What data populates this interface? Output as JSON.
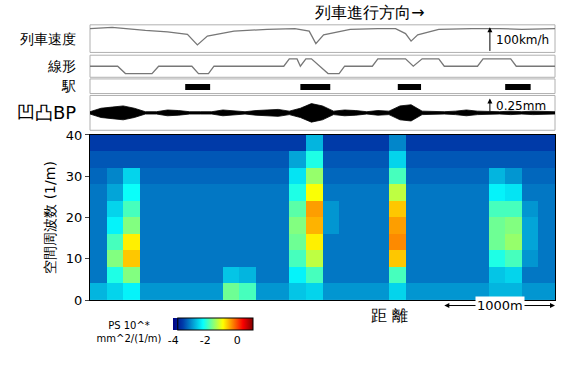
{
  "chart_data": {
    "type": "heatmap",
    "title": "列車進行方向→",
    "x_label": "距 離",
    "y_label": "空間周波数 (1/m)",
    "tick_labels": "y",
    "xlim": [
      0,
      4200
    ],
    "xticks": [],
    "ylim": [
      0,
      40
    ],
    "yticks": [
      0,
      10,
      20,
      30,
      40
    ],
    "x": [
      75,
      225,
      375,
      525,
      675,
      825,
      975,
      1125,
      1275,
      1425,
      1575,
      1725,
      1875,
      2025,
      2175,
      2325,
      2475,
      2625,
      2775,
      2925,
      3075,
      3225,
      3375,
      3525,
      3675,
      3825,
      3975,
      4125
    ],
    "y": [
      2,
      6,
      10,
      14,
      18,
      22,
      26,
      30,
      34,
      38
    ],
    "z": [
      [
        -2.6,
        -2.4,
        -2.2,
        -2.8,
        -2.8,
        -2.8,
        -2.8,
        -2.8,
        -1.6,
        -1.8,
        -2.8,
        -2.8,
        -2.5,
        -2.4,
        -2.8,
        -2.8,
        -2.8,
        -2.8,
        -2.4,
        -2.8,
        -2.8,
        -2.8,
        -2.8,
        -2.8,
        -2.6,
        -2.6,
        -2.8,
        -2.8
      ],
      [
        -3,
        -2.0,
        -1.5,
        -3,
        -3,
        -3,
        -3,
        -3,
        -2.5,
        -2.6,
        -3,
        -3,
        -2.2,
        -1.8,
        -3,
        -3,
        -3,
        -3,
        -1.8,
        -3,
        -3,
        -3,
        -3,
        -3,
        -2.5,
        -2.4,
        -3,
        -3
      ],
      [
        -3,
        -1.5,
        -0.6,
        -3,
        -3,
        -3,
        -3,
        -3,
        -3,
        -3,
        -3,
        -3,
        -1.8,
        -1.2,
        -3,
        -3,
        -3,
        -3,
        -0.6,
        -3,
        -3,
        -3,
        -3,
        -3,
        -2.0,
        -1.8,
        -2.8,
        -3
      ],
      [
        -3,
        -1.8,
        -0.8,
        -3,
        -3,
        -3,
        -3,
        -3,
        -3,
        -3,
        -3,
        -3,
        -1.6,
        -0.8,
        -3,
        -3,
        -3,
        -3,
        -0.3,
        -3,
        -3,
        -3,
        -3,
        -3,
        -1.6,
        -1.4,
        -2.7,
        -3
      ],
      [
        -3,
        -2.2,
        -1.5,
        -3,
        -3,
        -3,
        -3,
        -3,
        -3,
        -3,
        -3,
        -3,
        -1.5,
        -0.5,
        -2.8,
        -3,
        -3,
        -3,
        -0.4,
        -3,
        -3,
        -3,
        -3,
        -3,
        -1.6,
        -1.5,
        -2.7,
        -3
      ],
      [
        -3,
        -2.4,
        -1.8,
        -3,
        -3,
        -3,
        -3,
        -3,
        -3,
        -3,
        -3,
        -3,
        -1.7,
        -0.4,
        -2.8,
        -3,
        -3,
        -3,
        -0.6,
        -3,
        -3,
        -3,
        -3,
        -3,
        -1.8,
        -1.8,
        -2.8,
        -3
      ],
      [
        -3,
        -2.7,
        -2.1,
        -3,
        -3,
        -3,
        -3,
        -3,
        -3,
        -3,
        -3,
        -3,
        -2.0,
        -0.9,
        -3,
        -3,
        -3,
        -3,
        -1.2,
        -3,
        -3,
        -3,
        -3,
        -3,
        -2.2,
        -2.3,
        -3,
        -3
      ],
      [
        -3.1,
        -2.9,
        -2.4,
        -3.1,
        -3.1,
        -3.1,
        -3.1,
        -3.1,
        -3.1,
        -3.1,
        -3.1,
        -3.1,
        -2.3,
        -1.4,
        -3.1,
        -3.1,
        -3.1,
        -3.1,
        -1.8,
        -3.1,
        -3.1,
        -3.1,
        -3.1,
        -3.1,
        -2.6,
        -2.8,
        -3.1,
        -3.1
      ],
      [
        -3.2,
        -3.2,
        -3.2,
        -3.2,
        -3.2,
        -3.2,
        -3.2,
        -3.2,
        -3.2,
        -3.2,
        -3.2,
        -3.2,
        -2.7,
        -2.0,
        -3.2,
        -3.2,
        -3.2,
        -3.2,
        -2.4,
        -3.2,
        -3.2,
        -3.2,
        -3.2,
        -3.2,
        -3.2,
        -3.2,
        -3.2,
        -3.2
      ],
      [
        -3.4,
        -3.4,
        -3.4,
        -3.4,
        -3.4,
        -3.4,
        -3.4,
        -3.4,
        -3.4,
        -3.4,
        -3.4,
        -3.4,
        -3.4,
        -2.6,
        -3.4,
        -3.4,
        -3.4,
        -3.4,
        -2.9,
        -3.4,
        -3.4,
        -3.4,
        -3.4,
        -3.4,
        -3.4,
        -3.4,
        -3.4,
        -3.4
      ]
    ],
    "colorbar": {
      "title": "PS 10^*\nmm^2/(1/m)",
      "range": [
        -4,
        1
      ],
      "ticks": [
        -4,
        -2,
        0
      ]
    },
    "panels": [
      {
        "name": "列車速度",
        "type": "line",
        "x": [
          0,
          200,
          500,
          700,
          880,
          970,
          1060,
          1300,
          1600,
          1850,
          1980,
          2040,
          2110,
          2350,
          2600,
          2760,
          2850,
          2900,
          2960,
          3150,
          3450,
          3700,
          3900,
          4200
        ],
        "values": [
          95,
          100,
          88,
          82,
          72,
          30,
          65,
          85,
          92,
          95,
          85,
          35,
          70,
          92,
          95,
          95,
          75,
          45,
          70,
          92,
          95,
          95,
          92,
          95
        ],
        "ylim": [
          0,
          110
        ],
        "yticks": [],
        "scale": {
          "value": 100,
          "label": "100km/h"
        }
      },
      {
        "name": "線形",
        "type": "line",
        "x": [
          0,
          250,
          320,
          560,
          620,
          920,
          980,
          1070,
          1120,
          1750,
          1800,
          1870,
          1900,
          1950,
          2000,
          2080,
          2150,
          2250,
          2300,
          2550,
          2600,
          2850,
          2920,
          3000,
          3150,
          3200,
          3500,
          3550,
          3800,
          3850,
          4200
        ],
        "values": [
          0,
          0,
          -1,
          -1,
          0,
          0,
          -1,
          -1,
          0,
          0,
          1,
          1,
          0,
          1,
          1,
          0,
          -1,
          -1,
          0,
          0,
          1,
          1,
          0,
          1,
          1,
          0,
          0,
          1,
          1,
          0,
          0
        ],
        "ylim": [
          -1.5,
          1.5
        ],
        "yticks": []
      },
      {
        "name": "駅",
        "type": "bar",
        "ranges": [
          [
            860,
            1085
          ],
          [
            1900,
            2170
          ],
          [
            2780,
            2990
          ],
          [
            3750,
            3980
          ]
        ]
      },
      {
        "name": "凹凸BP",
        "type": "area",
        "x": [
          0,
          100,
          200,
          300,
          400,
          500,
          600,
          700,
          800,
          900,
          1000,
          1100,
          1200,
          1300,
          1400,
          1500,
          1600,
          1700,
          1800,
          1900,
          2000,
          2100,
          2200,
          2300,
          2400,
          2500,
          2600,
          2700,
          2800,
          2900,
          3000,
          3100,
          3200,
          3300,
          3400,
          3500,
          3600,
          3700,
          3800,
          3900,
          4000,
          4100,
          4200
        ],
        "upper": [
          0.02,
          0.08,
          0.1,
          0.12,
          0.08,
          0.02,
          0.02,
          0.05,
          0.04,
          0.02,
          0.02,
          0.02,
          0.05,
          0.03,
          0.02,
          0.04,
          0.05,
          0.06,
          0.03,
          0.08,
          0.16,
          0.12,
          0.03,
          0.05,
          0.04,
          0.02,
          0.04,
          0.03,
          0.12,
          0.14,
          0.03,
          0.02,
          0.02,
          0.03,
          0.05,
          0.03,
          0.02,
          0.02,
          0.03,
          0.02,
          0.03,
          0.02,
          0.02
        ],
        "lower": [
          -0.02,
          -0.08,
          -0.1,
          -0.12,
          -0.08,
          -0.02,
          -0.02,
          -0.05,
          -0.04,
          -0.02,
          -0.02,
          -0.02,
          -0.05,
          -0.03,
          -0.02,
          -0.04,
          -0.05,
          -0.06,
          -0.03,
          -0.08,
          -0.16,
          -0.12,
          -0.03,
          -0.05,
          -0.04,
          -0.02,
          -0.04,
          -0.03,
          -0.12,
          -0.14,
          -0.03,
          -0.02,
          -0.02,
          -0.03,
          -0.05,
          -0.03,
          -0.02,
          -0.02,
          -0.03,
          -0.02,
          -0.03,
          -0.02,
          -0.02
        ],
        "ylim": [
          -0.3,
          0.3
        ],
        "yticks": [],
        "scale": {
          "value": 0.25,
          "label": "0.25mm"
        }
      }
    ],
    "scale_bar": {
      "length": 1000,
      "label": "1000m"
    }
  }
}
